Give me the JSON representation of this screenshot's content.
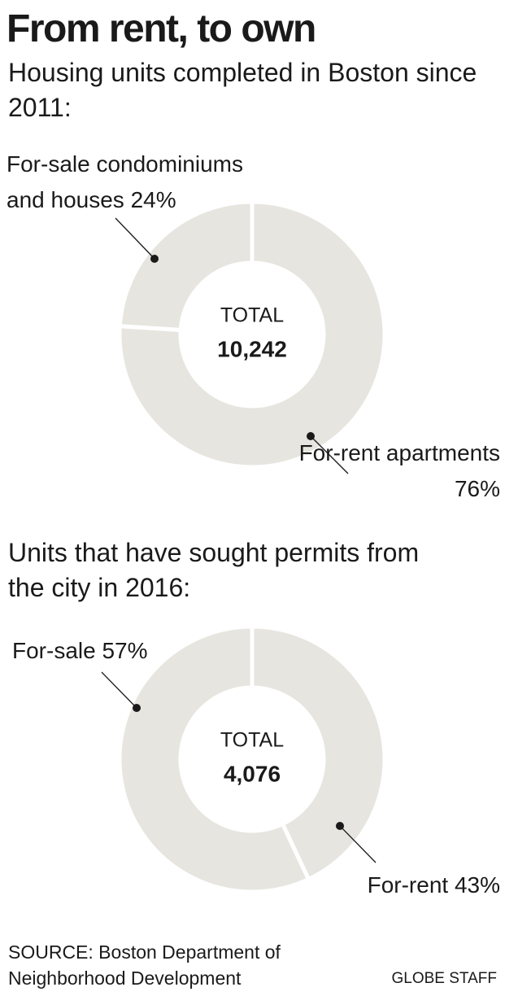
{
  "title": "From rent, to own",
  "chart_data": [
    {
      "type": "donut",
      "title": "Housing units completed in Boston since 2011:",
      "categories": [
        "For-rent apartments",
        "For-sale condominiums and houses"
      ],
      "values": [
        76,
        24
      ],
      "value_labels": [
        "76%",
        "24%"
      ],
      "color": "#e6e5df",
      "center_label": "TOTAL",
      "total": 10242,
      "total_label": "10,242"
    },
    {
      "type": "donut",
      "title": "Units that have sought permits from the city in 2016:",
      "categories": [
        "For-rent",
        "For-sale"
      ],
      "values": [
        43,
        57
      ],
      "value_labels": [
        "43%",
        "57%"
      ],
      "color": "#e6e5df",
      "center_label": "TOTAL",
      "total": 4076,
      "total_label": "4,076"
    }
  ],
  "source": "SOURCE: Boston Department of Neighborhood Development",
  "credit": "GLOBE STAFF"
}
